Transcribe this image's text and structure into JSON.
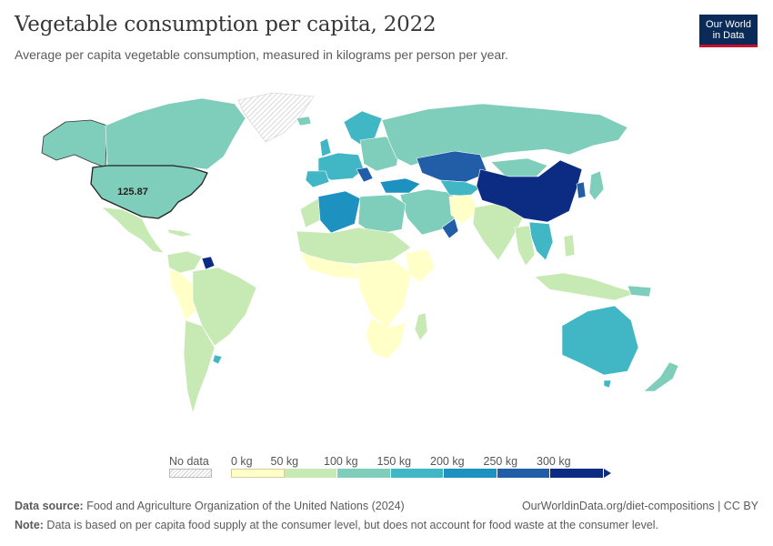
{
  "header": {
    "title": "Vegetable consumption per capita, 2022",
    "subtitle": "Average per capita vegetable consumption, measured in kilograms per person per year.",
    "logo_line1": "Our World",
    "logo_line2": "in Data"
  },
  "map": {
    "tooltip_value": "125.87"
  },
  "legend": {
    "no_data_label": "No data",
    "bin_labels": [
      "0 kg",
      "50 kg",
      "100 kg",
      "150 kg",
      "200 kg",
      "250 kg",
      "300 kg"
    ],
    "bin_colors": [
      "#ffffc7",
      "#c7e9b4",
      "#7fcdbb",
      "#41b6c4",
      "#1d91c0",
      "#225ea8",
      "#0c2c84"
    ],
    "no_data_color": "#d9d9d9"
  },
  "footer": {
    "source_label": "Data source:",
    "source_text": " Food and Agriculture Organization of the United Nations (2024)",
    "url_text": "OurWorldinData.org/diet-compositions | CC BY",
    "note_label": "Note:",
    "note_text": " Data is based on per capita food supply at the consumer level, but does not account for food waste at the consumer level."
  }
}
